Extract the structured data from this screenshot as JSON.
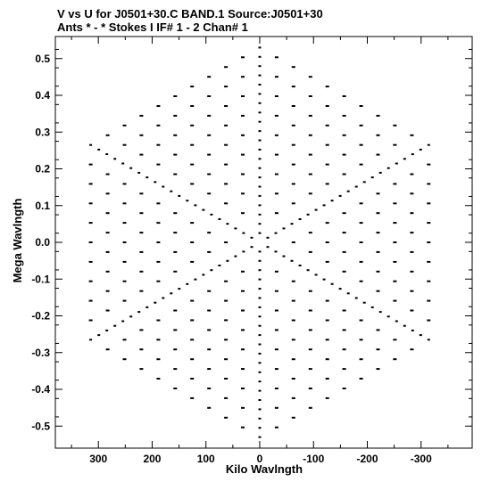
{
  "chart_data": {
    "type": "scatter",
    "title": "V vs U for J0501+30.C BAND.1   Source:J0501+30",
    "subtitle": "Ants * - *     Stokes I  IF# 1 - 2  Chan# 1",
    "xlabel": "Kilo Wavlngth",
    "ylabel": "Mega Wavlngth",
    "xlim": [
      380,
      -395
    ],
    "ylim": [
      -0.56,
      0.56
    ],
    "x_reversed": true,
    "grid": false,
    "legend": "none",
    "x_ticks": [
      300,
      200,
      100,
      0,
      -100,
      -200,
      -300
    ],
    "x_tick_labels": [
      "300",
      "200",
      "100",
      "0",
      "-100",
      "-200",
      "-300"
    ],
    "y_ticks": [
      0.5,
      0.4,
      0.3,
      0.2,
      0.1,
      0.0,
      -0.1,
      -0.2,
      -0.3,
      -0.4,
      -0.5
    ],
    "y_tick_labels": [
      "0.5",
      "0.4",
      "0.3",
      "0.2",
      "0.1",
      "0.0",
      "-0.1",
      "-0.2",
      "-0.3",
      "-0.4",
      "-0.5"
    ],
    "pattern": {
      "description": "snapshot uv coverage of a Y-shaped array, forming a six-pointed star",
      "arm_directions_deg": [
        90,
        210,
        330,
        270,
        30,
        150
      ],
      "arm_reach_mega_wavelength": 0.53,
      "tips_kilo_mega": [
        [
          0,
          0.53
        ],
        [
          0,
          -0.53
        ],
        [
          375,
          0.32
        ],
        [
          -385,
          -0.32
        ],
        [
          -375,
          0.21
        ],
        [
          385,
          -0.21
        ]
      ],
      "point_color": "#000000"
    }
  }
}
